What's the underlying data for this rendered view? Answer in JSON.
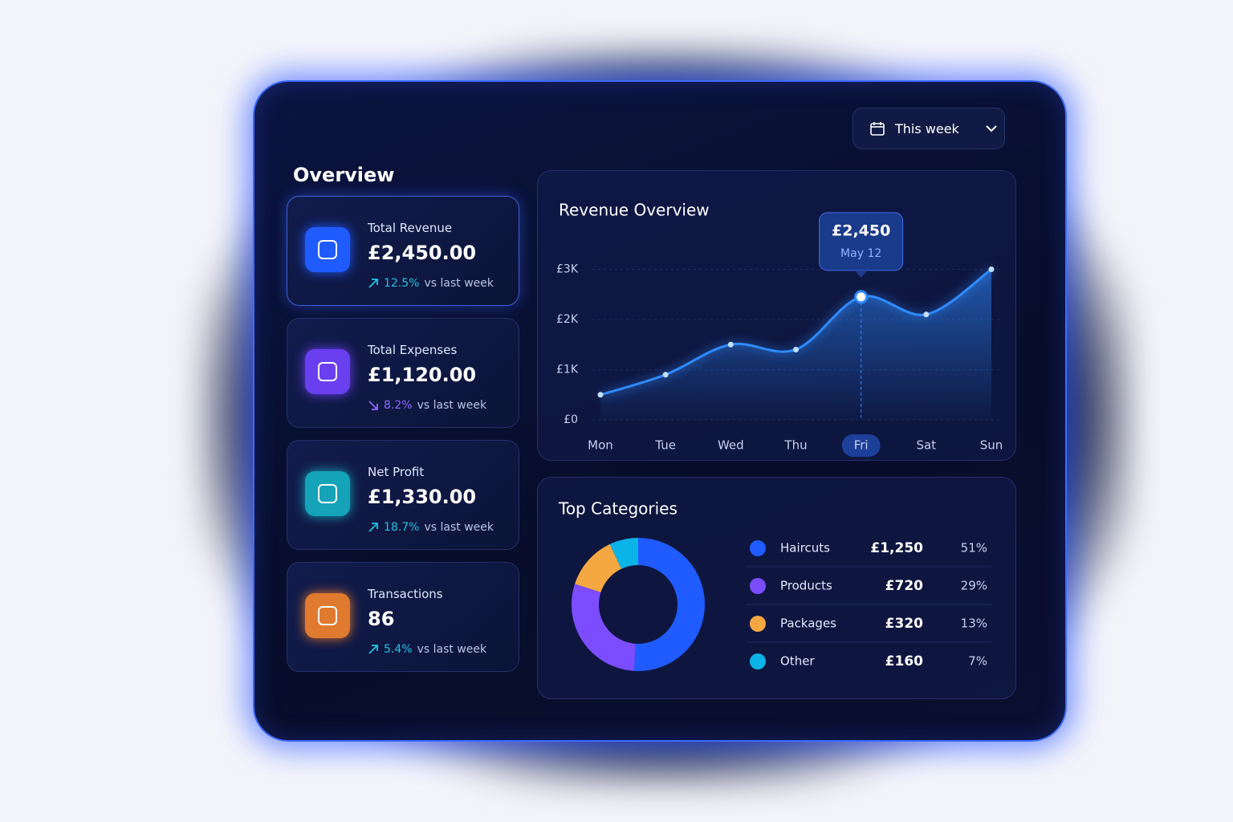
{
  "header": {
    "title": "Overview",
    "range": "This week"
  },
  "stats": [
    {
      "label": "Total Revenue",
      "value": "£2,450.00",
      "change": "12.5%",
      "trend": "up",
      "note": "vs last week",
      "color": "#1f5bff"
    },
    {
      "label": "Total Expenses",
      "value": "£1,120.00",
      "change": "8.2%",
      "trend": "down",
      "note": "vs last week",
      "color": "#6a3ff0"
    },
    {
      "label": "Net Profit",
      "value": "£1,330.00",
      "change": "18.7%",
      "trend": "up",
      "note": "vs last week",
      "color": "#14a3b8"
    },
    {
      "label": "Transactions",
      "value": "86",
      "change": "5.4%",
      "trend": "up",
      "note": "vs last week",
      "color": "#e07a2e"
    }
  ],
  "revenue": {
    "type": "line",
    "title": "Revenue Overview",
    "categories": [
      "Mon",
      "Tue",
      "Wed",
      "Thu",
      "Fri",
      "Sat",
      "Sun"
    ],
    "values": [
      500,
      900,
      1500,
      1400,
      2450,
      2100,
      3000
    ],
    "value_labels": [
      null,
      null,
      null,
      null,
      "£2,450",
      null,
      null
    ],
    "tooltip_date": "May 12",
    "color": "#2f8bff",
    "ylim": [
      0,
      3200
    ],
    "yticks": [
      {
        "value": 0,
        "label": "£0"
      },
      {
        "value": 1000,
        "label": "£1K"
      },
      {
        "value": 2000,
        "label": "£2K"
      },
      {
        "value": 3000,
        "label": "£3K"
      }
    ],
    "grid": true
  },
  "categories": {
    "type": "pie",
    "title": "Top Categories",
    "items": [
      {
        "name": "Haircuts",
        "amount": "£1,250",
        "color": "#1f5bff"
      },
      {
        "name": "Products",
        "amount": "£720",
        "color": "#7c4dff"
      },
      {
        "name": "Packages",
        "amount": "£320",
        "color": "#f5a742"
      },
      {
        "name": "Other",
        "amount": "£160",
        "color": "#0bb4e6"
      }
    ],
    "values": [
      51,
      29,
      13,
      7
    ],
    "value_labels": [
      "51%",
      "29%",
      "13%",
      "7%"
    ]
  }
}
